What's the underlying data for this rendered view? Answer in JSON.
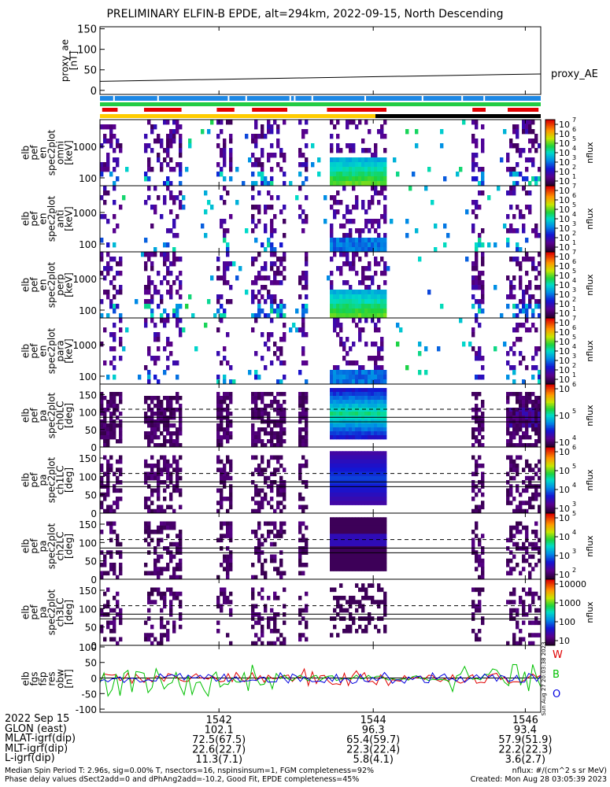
{
  "title": "PRELIMINARY ELFIN-B EPDE, alt=294km, 2022-09-15, North Descending",
  "chart_data": {
    "type": "heatmap",
    "x_ticks": [
      "1542",
      "1544",
      "1546"
    ],
    "proxy_ae": {
      "ylabel_lines": [
        "proxy_ae",
        "[nT]"
      ],
      "yticks": [
        "150",
        "100",
        "50",
        "0"
      ],
      "ylim": [
        -10,
        155
      ],
      "series": [
        {
          "name": "proxy_AE",
          "x": [
            0,
            1
          ],
          "y": [
            22,
            40
          ]
        }
      ]
    },
    "energy_panels": [
      {
        "ylabel_lines": [
          "elb",
          "pef",
          "en",
          "spec2plot",
          "omni",
          "[keV]"
        ],
        "yticks": [
          "1000",
          "100"
        ],
        "cbar_ticks": [
          "10",
          "10",
          "10",
          "10",
          "10",
          "10",
          "10"
        ],
        "cbar_exp": [
          "7",
          "6",
          "5",
          "4",
          "3",
          "2",
          "1"
        ],
        "cbar_label": "nflux"
      },
      {
        "ylabel_lines": [
          "elb",
          "pef",
          "en",
          "spec2plot",
          "anti",
          "[keV]"
        ],
        "yticks": [
          "1000",
          "100"
        ],
        "cbar_ticks": [
          "10",
          "10",
          "10",
          "10",
          "10",
          "10",
          "10"
        ],
        "cbar_exp": [
          "7",
          "6",
          "5",
          "4",
          "3",
          "2",
          "1"
        ],
        "cbar_label": "nflux"
      },
      {
        "ylabel_lines": [
          "elb",
          "pef",
          "en",
          "spec2plot",
          "perp",
          "[keV]"
        ],
        "yticks": [
          "1000",
          "100"
        ],
        "cbar_ticks": [
          "10",
          "10",
          "10",
          "10",
          "10",
          "10",
          "10"
        ],
        "cbar_exp": [
          "7",
          "6",
          "5",
          "4",
          "3",
          "2",
          "1"
        ],
        "cbar_label": "nflux"
      },
      {
        "ylabel_lines": [
          "elb",
          "pef",
          "en",
          "spec2plot",
          "para",
          "[keV]"
        ],
        "yticks": [
          "1000",
          "100"
        ],
        "cbar_ticks": [
          "10",
          "10",
          "10",
          "10",
          "10",
          "10",
          "10"
        ],
        "cbar_exp": [
          "7",
          "6",
          "5",
          "4",
          "3",
          "2",
          "1"
        ],
        "cbar_label": "nflux"
      }
    ],
    "pa_panels": [
      {
        "ylabel_lines": [
          "elb",
          "pef",
          "pa",
          "spec2plot",
          "ch0LC",
          "[deg]"
        ],
        "yticks": [
          "150",
          "100",
          "50",
          "0"
        ],
        "cbar_ticks": [
          "10",
          "10",
          "10"
        ],
        "cbar_exp": [
          "6",
          "5",
          "4"
        ],
        "cbar_label": "nflux"
      },
      {
        "ylabel_lines": [
          "elb",
          "pef",
          "pa",
          "spec2plot",
          "ch1LC",
          "[deg]"
        ],
        "yticks": [
          "150",
          "100",
          "50",
          "0"
        ],
        "cbar_ticks": [
          "10",
          "10",
          "10",
          "10"
        ],
        "cbar_exp": [
          "6",
          "5",
          "4",
          "3"
        ],
        "cbar_label": "nflux"
      },
      {
        "ylabel_lines": [
          "elb",
          "pef",
          "pa",
          "spec2plot",
          "ch2LC",
          "[deg]"
        ],
        "yticks": [
          "150",
          "100",
          "50",
          "0"
        ],
        "cbar_ticks": [
          "10",
          "10",
          "10",
          "10"
        ],
        "cbar_exp": [
          "5",
          "4",
          "3",
          "2"
        ],
        "cbar_label": "nflux"
      },
      {
        "ylabel_lines": [
          "elb",
          "pef",
          "pa",
          "spec2plot",
          "ch3LC",
          "[deg]"
        ],
        "yticks": [
          "150",
          "100",
          "50",
          "0"
        ],
        "cbar_ticks": [
          "10000",
          "1000",
          "100",
          "10"
        ],
        "cbar_exp": [],
        "cbar_label": "nflux"
      }
    ],
    "fgs_panel": {
      "ylabel_lines": [
        "elb",
        "fgs",
        "fsp",
        "res",
        "obw",
        "[nT]"
      ],
      "yticks": [
        "100",
        "50",
        "0",
        "-50",
        "-100"
      ],
      "ylim": [
        -110,
        105
      ],
      "legend": [
        "W",
        "B",
        "O"
      ],
      "legend_colors": [
        "#e00000",
        "#00c000",
        "#0000e0"
      ],
      "side_note": "Sun Aug 27 20:03:38 2023"
    },
    "ephem": {
      "rows": [
        {
          "label": "2022 Sep 15",
          "values": [
            "1542",
            "1544",
            "1546"
          ]
        },
        {
          "label": "GLON (east)",
          "values": [
            "102.1",
            "96.3",
            "93.4"
          ]
        },
        {
          "label": "MLAT-igrf(dip)",
          "values": [
            "72.5(67.5)",
            "65.4(59.7)",
            "57.9(51.9)"
          ]
        },
        {
          "label": "MLT-igrf(dip)",
          "values": [
            "22.6(22.7)",
            "22.3(22.4)",
            "22.2(22.3)"
          ]
        },
        {
          "label": "L-igrf(dip)",
          "values": [
            "11.3(7.1)",
            "5.8(4.1)",
            "3.6(2.7)"
          ]
        }
      ]
    }
  },
  "footer": {
    "line1_left": "Median Spin Period T: 2.96s, sig=0.00% T, nsectors=16, nspinsinsum=1, FGM completeness=92%",
    "line2_left": "Phase delay values dSect2add=0 and dPhAng2add=-10.2, Good Fit, EPDE completeness=45%",
    "line1_right": "nflux: #/(cm^2 s sr MeV)",
    "line2_right": "Created: Mon Aug 28 03:05:39 2023"
  },
  "colors": {
    "bar_blue": "#1e88e5",
    "bar_green": "#22cc44",
    "bar_red": "#e00000",
    "bar_yellow": "#ffcc00",
    "bar_black": "#000000"
  }
}
